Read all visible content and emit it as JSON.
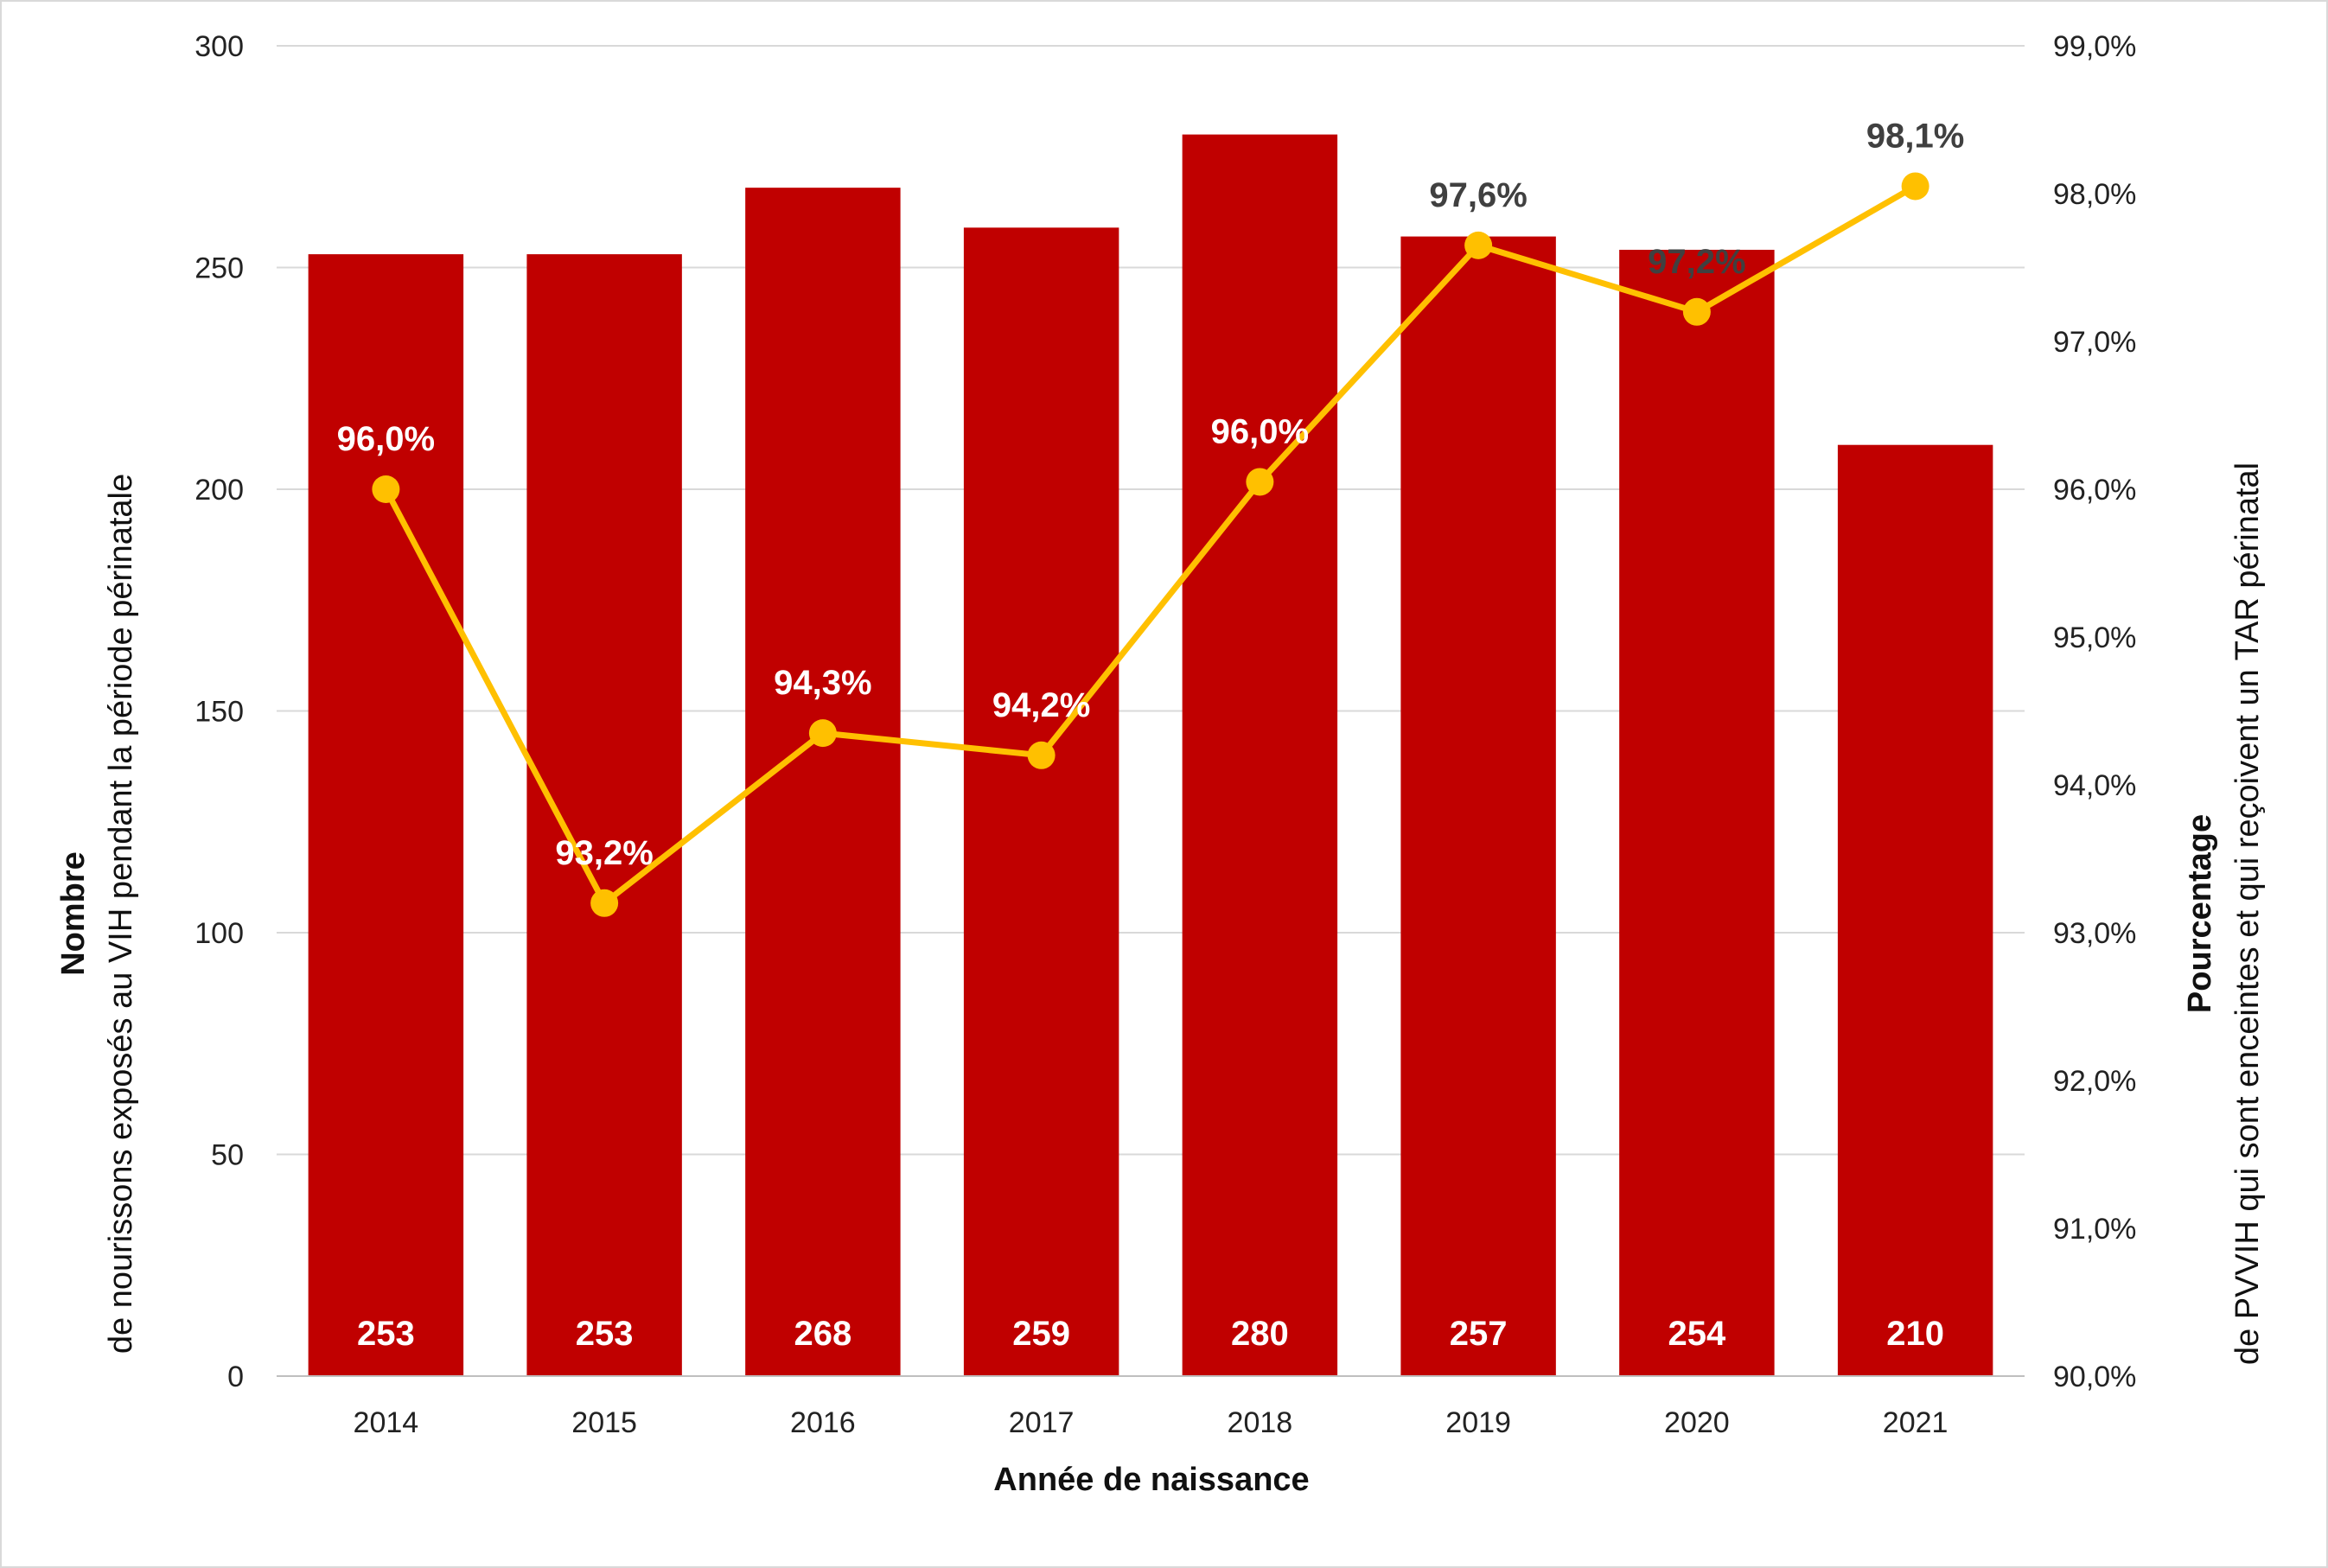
{
  "chart_data": {
    "type": "bar+line",
    "categories": [
      "2014",
      "2015",
      "2016",
      "2017",
      "2018",
      "2019",
      "2020",
      "2021"
    ],
    "xlabel": "Année de naissance",
    "ylabel_left": {
      "bold": "Nombre",
      "text": "de nourissons exposés au VIH pendant la période périnatale"
    },
    "ylabel_right": {
      "bold": "Pourcentage",
      "text": "de PVVIH qui sont enceintes et qui reçoivent un TAR périnatal"
    },
    "y_left": {
      "min": 0,
      "max": 300,
      "ticks": [
        0,
        50,
        100,
        150,
        200,
        250,
        300
      ],
      "tick_labels": [
        "0",
        "50",
        "100",
        "150",
        "200",
        "250",
        "300"
      ]
    },
    "y_right": {
      "min": 90.0,
      "max": 99.0,
      "ticks": [
        90,
        91,
        92,
        93,
        94,
        95,
        96,
        97,
        98,
        99
      ],
      "tick_labels": [
        "90,0%",
        "91,0%",
        "92,0%",
        "93,0%",
        "94,0%",
        "95,0%",
        "96,0%",
        "97,0%",
        "98,0%",
        "99,0%"
      ]
    },
    "grid": true,
    "bar_series": {
      "values": [
        253,
        253,
        268,
        259,
        280,
        257,
        254,
        210
      ],
      "labels": [
        "253",
        "253",
        "268",
        "259",
        "280",
        "257",
        "254",
        "210"
      ],
      "color": "#c00000"
    },
    "line_series": {
      "values": [
        96.0,
        93.2,
        94.35,
        94.2,
        96.05,
        97.65,
        97.2,
        98.05
      ],
      "labels": [
        "96,0%",
        "93,2%",
        "94,3%",
        "94,2%",
        "96,0%",
        "97,6%",
        "97,2%",
        "98,1%"
      ],
      "label_colors": [
        "#ffffff",
        "#ffffff",
        "#ffffff",
        "#ffffff",
        "#ffffff",
        "#404040",
        "#404040",
        "#404040"
      ],
      "color": "#ffc000"
    },
    "colors": {
      "grid": "#d9d9d9",
      "axis": "#bfbfbf"
    }
  }
}
